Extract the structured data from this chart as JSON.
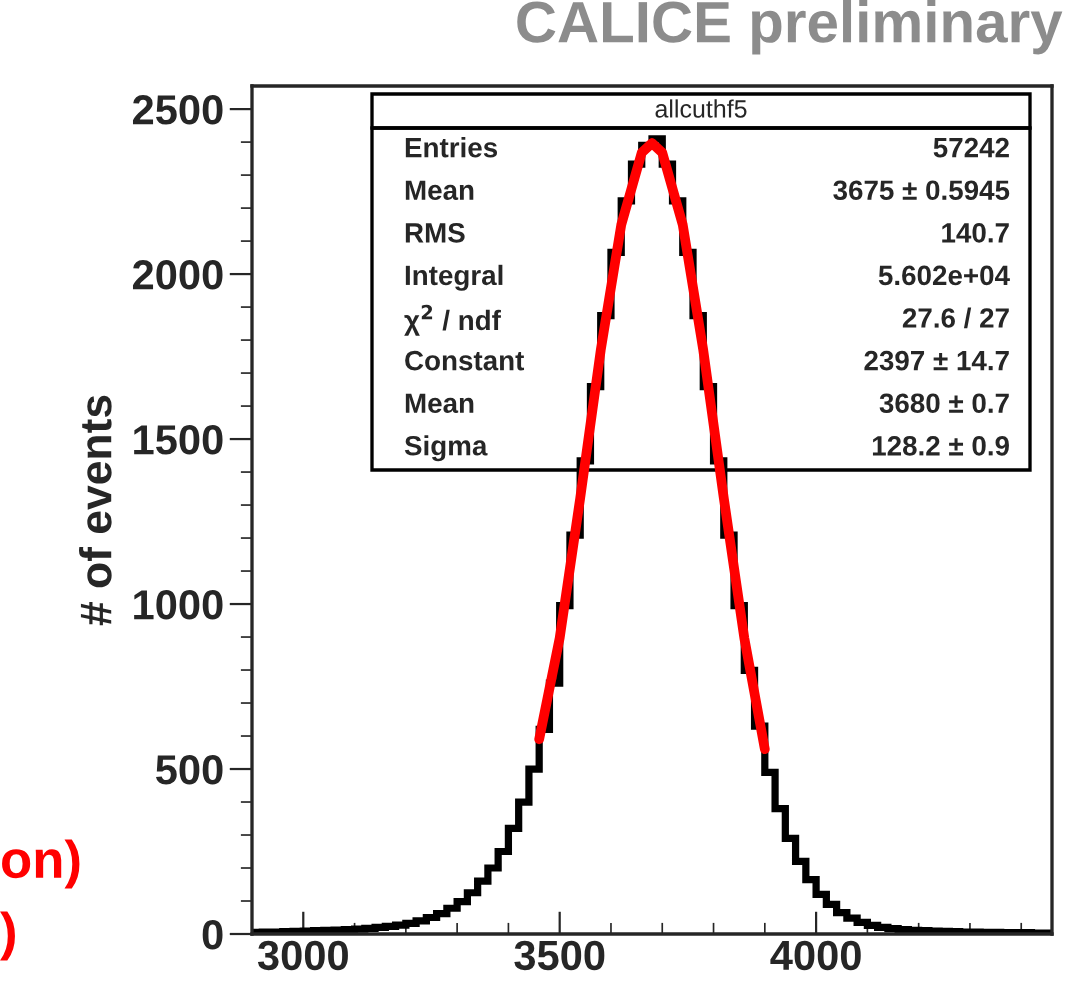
{
  "chart_data": {
    "type": "histogram",
    "title": "CALICE preliminary",
    "ylabel": "# of events",
    "bins": [
      2900,
      2920,
      2940,
      2960,
      2980,
      3000,
      3020,
      3040,
      3060,
      3080,
      3100,
      3120,
      3140,
      3160,
      3180,
      3200,
      3220,
      3240,
      3260,
      3280,
      3300,
      3320,
      3340,
      3360,
      3380,
      3400,
      3420,
      3440,
      3460,
      3480,
      3500,
      3520,
      3540,
      3560,
      3580,
      3600,
      3620,
      3640,
      3660,
      3680,
      3700,
      3720,
      3740,
      3760,
      3780,
      3800,
      3820,
      3840,
      3860,
      3880,
      3900,
      3920,
      3940,
      3960,
      3980,
      4000,
      4020,
      4040,
      4060,
      4080,
      4100,
      4120,
      4140,
      4160,
      4180,
      4200,
      4220,
      4240,
      4260,
      4280,
      4300,
      4320,
      4340,
      4360,
      4380,
      4400,
      4420,
      4440,
      4460
    ],
    "values": [
      5,
      6,
      6,
      7,
      8,
      9,
      10,
      11,
      12,
      13,
      15,
      17,
      20,
      23,
      27,
      32,
      40,
      50,
      62,
      78,
      98,
      125,
      160,
      200,
      250,
      320,
      400,
      500,
      620,
      760,
      995,
      1209,
      1434,
      1659,
      1874,
      2066,
      2222,
      2333,
      2390,
      2410,
      2333,
      2222,
      2066,
      1874,
      1659,
      1434,
      1209,
      995,
      799,
      630,
      490,
      380,
      290,
      220,
      165,
      120,
      90,
      65,
      48,
      35,
      26,
      20,
      16,
      13,
      11,
      10,
      9,
      8,
      7,
      6,
      6,
      5,
      5,
      4,
      4,
      4,
      3,
      3
    ],
    "color": "#000000",
    "series": [
      {
        "type": "line",
        "color": "#ff0000",
        "x": [
          3460,
          3500,
          3540,
          3580,
          3620,
          3660,
          3680,
          3700,
          3740,
          3780,
          3820,
          3860,
          3900
        ],
        "values": [
          590,
          897,
          1321,
          1769,
          2149,
          2368,
          2397,
          2368,
          2149,
          1769,
          1321,
          897,
          560
        ]
      }
    ],
    "xlim": [
      2900,
      4460
    ],
    "ylim": [
      0,
      2570
    ],
    "xticks": [
      3000,
      3500,
      4000
    ],
    "yticks": [
      0,
      500,
      1000,
      1500,
      2000,
      2500
    ],
    "grid": false,
    "annotations": [
      "allcuthf5",
      "Entries",
      "57242",
      "Mean",
      "3675 ± 0.5945",
      "RMS",
      "140.7",
      "Integral",
      "5.602e+04",
      "χ$^{2}$ / ndf",
      "27.6 / 27",
      "Constant",
      "2397 ± 14.7",
      "Mean",
      "3680 ± 0.7",
      "Sigma",
      "128.2 ± 0.9",
      "on)",
      ")"
    ]
  }
}
